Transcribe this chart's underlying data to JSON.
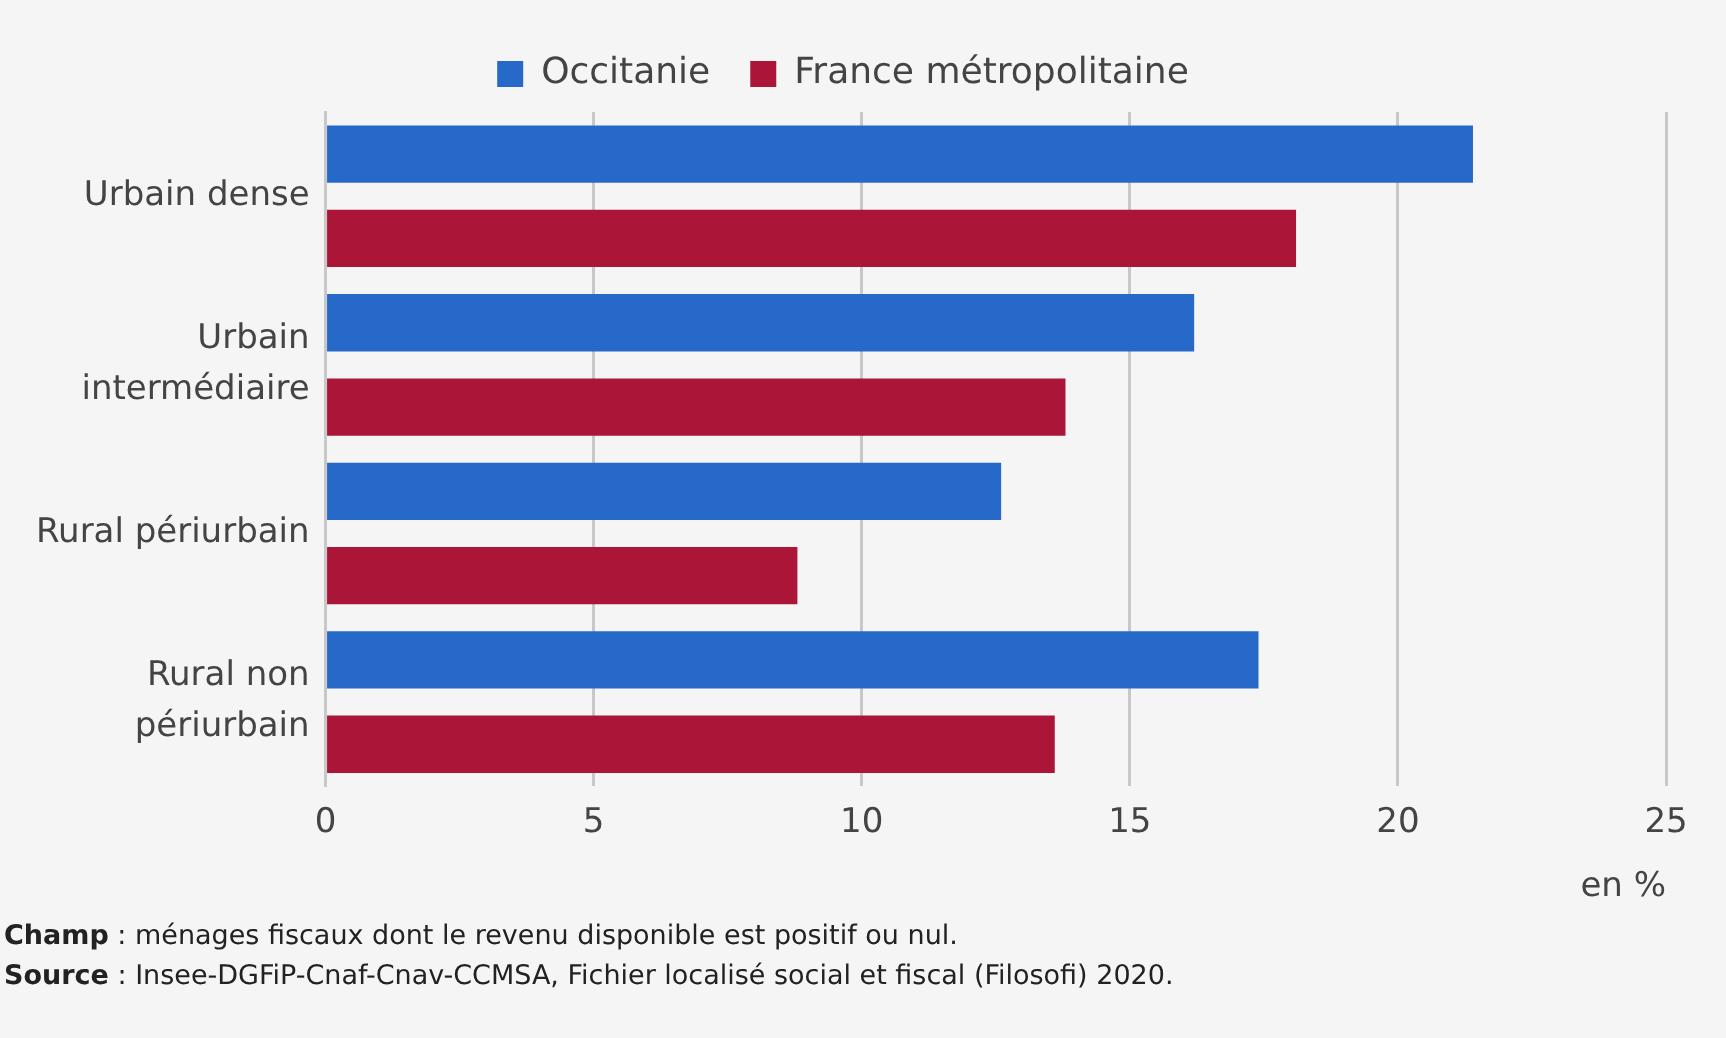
{
  "chart_data": {
    "type": "bar",
    "orientation": "horizontal",
    "categories": [
      "Urbain dense",
      "Urbain intermédiaire",
      "Rural périurbain",
      "Rural non périurbain"
    ],
    "series": [
      {
        "name": "Occitanie",
        "color": "#2769c8",
        "values": [
          21.4,
          16.2,
          12.6,
          17.4
        ]
      },
      {
        "name": "France métropolitaine",
        "color": "#ab1638",
        "values": [
          18.1,
          13.8,
          8.8,
          13.6
        ]
      }
    ],
    "xlim": [
      0,
      25
    ],
    "xticks": [
      0,
      5,
      10,
      15,
      20,
      25
    ],
    "xlabel": "en %",
    "grid": "x",
    "legend": "top",
    "annotations": [
      "Champ : ménages fiscaux dont le revenu disponible est positif ou nul.",
      "Source : Insee-DGFiP-Cnaf-Cnav-CCMSA, Fichier localisé social et fiscal (Filosofi) 2020."
    ]
  }
}
